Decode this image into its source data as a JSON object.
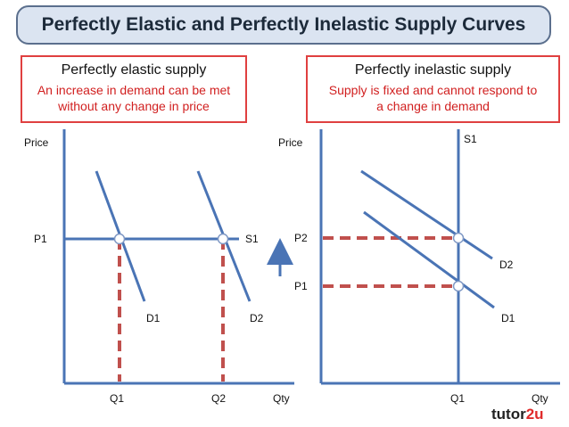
{
  "title": "Perfectly Elastic and Perfectly Inelastic Supply Curves",
  "left_box": {
    "heading": "Perfectly elastic supply",
    "text_line1": "An increase in demand can be met",
    "text_line2": "without any change in price"
  },
  "right_box": {
    "heading": "Perfectly inelastic supply",
    "text_line1": "Supply is fixed and cannot respond to",
    "text_line2": "a change in demand"
  },
  "left_chart": {
    "y_axis_label": "Price",
    "x_axis_label": "Qty",
    "price_label": "P1",
    "supply_label": "S1",
    "demand1_label": "D1",
    "demand2_label": "D2",
    "q1_label": "Q1",
    "q2_label": "Q2"
  },
  "right_chart": {
    "y_axis_label": "Price",
    "x_axis_label": "Qty",
    "supply_label": "S1",
    "p1_label": "P1",
    "p2_label": "P2",
    "demand1_label": "D1",
    "demand2_label": "D2",
    "q1_label": "Q1"
  },
  "brand": {
    "prefix": "tutor",
    "suffix": "2u"
  },
  "colors": {
    "curve": "#4a74b5",
    "dashed": "#c0504d",
    "box_border": "#e04040",
    "title_bg": "#dbe4f1"
  }
}
